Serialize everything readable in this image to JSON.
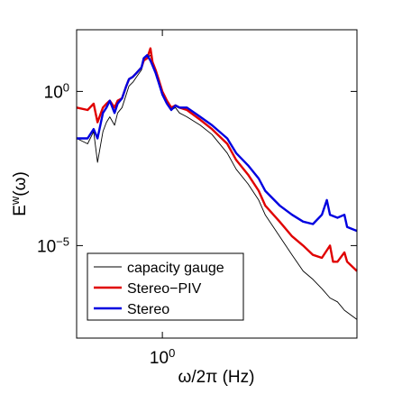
{
  "chart_data": {
    "type": "line",
    "title": "",
    "xlabel": "ω/2π (Hz)",
    "ylabel": "E^w(ω)",
    "x_scale": "log",
    "y_scale": "log",
    "xlim": [
      0.4,
      8
    ],
    "ylim": [
      1e-08,
      100.0
    ],
    "x_ticks": [
      {
        "value": 1,
        "label": "10^0"
      }
    ],
    "y_ticks": [
      {
        "value": 1,
        "label": "10^0"
      },
      {
        "value": 1e-05,
        "label": "10^-5"
      }
    ],
    "grid": false,
    "legend_position": "bottom-left",
    "series": [
      {
        "name": "capacity gauge",
        "color": "#000000",
        "points": [
          [
            0.4,
            0.03
          ],
          [
            0.45,
            0.02
          ],
          [
            0.48,
            0.05
          ],
          [
            0.5,
            0.005
          ],
          [
            0.53,
            0.05
          ],
          [
            0.55,
            0.1
          ],
          [
            0.57,
            0.15
          ],
          [
            0.6,
            0.08
          ],
          [
            0.62,
            0.2
          ],
          [
            0.65,
            0.3
          ],
          [
            0.68,
            0.8
          ],
          [
            0.7,
            1.5
          ],
          [
            0.73,
            2
          ],
          [
            0.76,
            3
          ],
          [
            0.8,
            5
          ],
          [
            0.82,
            10
          ],
          [
            0.85,
            12
          ],
          [
            0.88,
            15
          ],
          [
            0.9,
            8
          ],
          [
            0.93,
            4
          ],
          [
            0.96,
            2
          ],
          [
            1.0,
            0.8
          ],
          [
            1.05,
            0.4
          ],
          [
            1.1,
            0.25
          ],
          [
            1.15,
            0.3
          ],
          [
            1.2,
            0.2
          ],
          [
            1.3,
            0.15
          ],
          [
            1.5,
            0.08
          ],
          [
            1.7,
            0.04
          ],
          [
            2.0,
            0.01
          ],
          [
            2.2,
            0.003
          ],
          [
            2.5,
            0.001
          ],
          [
            2.8,
            0.0003
          ],
          [
            3.0,
            0.0001
          ],
          [
            3.5,
            2e-05
          ],
          [
            4.0,
            5e-06
          ],
          [
            4.5,
            1.5e-06
          ],
          [
            5.0,
            8e-07
          ],
          [
            5.5,
            4e-07
          ],
          [
            6.0,
            2e-07
          ],
          [
            6.5,
            1.5e-07
          ],
          [
            7.0,
            8e-08
          ],
          [
            8.0,
            4e-08
          ]
        ]
      },
      {
        "name": "Stereo−PIV",
        "color": "#e00000",
        "points": [
          [
            0.4,
            0.3
          ],
          [
            0.45,
            0.25
          ],
          [
            0.48,
            0.4
          ],
          [
            0.5,
            0.1
          ],
          [
            0.53,
            0.3
          ],
          [
            0.55,
            0.4
          ],
          [
            0.57,
            0.5
          ],
          [
            0.6,
            0.3
          ],
          [
            0.62,
            0.5
          ],
          [
            0.65,
            0.6
          ],
          [
            0.68,
            1.5
          ],
          [
            0.7,
            2.5
          ],
          [
            0.73,
            3
          ],
          [
            0.76,
            4
          ],
          [
            0.8,
            6
          ],
          [
            0.82,
            10
          ],
          [
            0.85,
            12
          ],
          [
            0.88,
            25
          ],
          [
            0.9,
            9
          ],
          [
            0.93,
            5
          ],
          [
            0.96,
            2.5
          ],
          [
            1.0,
            1
          ],
          [
            1.05,
            0.5
          ],
          [
            1.1,
            0.3
          ],
          [
            1.15,
            0.35
          ],
          [
            1.2,
            0.3
          ],
          [
            1.3,
            0.25
          ],
          [
            1.5,
            0.12
          ],
          [
            1.7,
            0.06
          ],
          [
            2.0,
            0.02
          ],
          [
            2.2,
            0.006
          ],
          [
            2.5,
            0.002
          ],
          [
            2.8,
            0.0006
          ],
          [
            3.0,
            0.0002
          ],
          [
            3.5,
            6e-05
          ],
          [
            4.0,
            2e-05
          ],
          [
            4.5,
            1e-05
          ],
          [
            5.0,
            5e-06
          ],
          [
            5.5,
            4e-06
          ],
          [
            6.0,
            1e-05
          ],
          [
            6.2,
            3e-06
          ],
          [
            6.5,
            3e-06
          ],
          [
            7.0,
            6e-06
          ],
          [
            7.2,
            3e-06
          ],
          [
            8.0,
            1.5e-06
          ]
        ]
      },
      {
        "name": "Stereo",
        "color": "#0000e0",
        "points": [
          [
            0.4,
            0.03
          ],
          [
            0.45,
            0.03
          ],
          [
            0.48,
            0.06
          ],
          [
            0.5,
            0.03
          ],
          [
            0.53,
            0.2
          ],
          [
            0.55,
            0.3
          ],
          [
            0.57,
            0.5
          ],
          [
            0.6,
            0.2
          ],
          [
            0.62,
            0.4
          ],
          [
            0.65,
            0.6
          ],
          [
            0.68,
            1.5
          ],
          [
            0.7,
            2.5
          ],
          [
            0.73,
            3
          ],
          [
            0.76,
            4
          ],
          [
            0.8,
            6
          ],
          [
            0.82,
            12
          ],
          [
            0.85,
            15
          ],
          [
            0.88,
            10
          ],
          [
            0.9,
            7
          ],
          [
            0.93,
            4
          ],
          [
            0.96,
            2
          ],
          [
            1.0,
            0.8
          ],
          [
            1.05,
            0.4
          ],
          [
            1.1,
            0.25
          ],
          [
            1.15,
            0.35
          ],
          [
            1.2,
            0.3
          ],
          [
            1.3,
            0.3
          ],
          [
            1.5,
            0.15
          ],
          [
            1.7,
            0.08
          ],
          [
            2.0,
            0.03
          ],
          [
            2.2,
            0.01
          ],
          [
            2.5,
            0.004
          ],
          [
            2.8,
            0.0015
          ],
          [
            3.0,
            0.0006
          ],
          [
            3.5,
            0.0002
          ],
          [
            4.0,
            0.0001
          ],
          [
            4.5,
            6e-05
          ],
          [
            5.0,
            5e-05
          ],
          [
            5.5,
            0.0001
          ],
          [
            5.8,
            0.0003
          ],
          [
            6.0,
            0.0001
          ],
          [
            6.5,
            8e-05
          ],
          [
            7.0,
            0.0001
          ],
          [
            7.2,
            4e-05
          ],
          [
            8.0,
            3e-05
          ]
        ]
      }
    ]
  }
}
